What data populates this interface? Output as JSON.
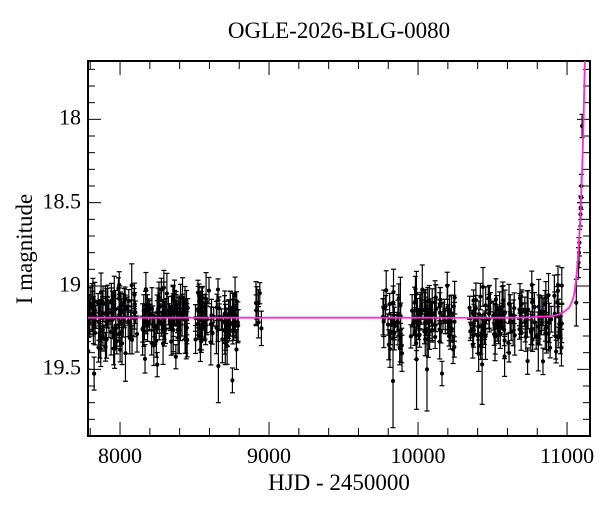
{
  "chart_data": {
    "type": "scatter",
    "title": "OGLE-2026-BLG-0080",
    "xlabel": "HJD - 2450000",
    "ylabel": "I magnitude",
    "xlim": [
      7785,
      11154
    ],
    "ylim": [
      17.65,
      19.9
    ],
    "y_axis_inverted": true,
    "grid": false,
    "legend": null,
    "x_major_ticks": [
      8000,
      9000,
      10000,
      11000
    ],
    "x_tick_labels": [
      "8000",
      "9000",
      "10000",
      "11000"
    ],
    "x_minor_step": 200,
    "y_major_ticks": [
      18,
      18.5,
      19,
      19.5
    ],
    "y_tick_labels": [
      "18",
      "18.5",
      "19",
      "19.5"
    ],
    "y_minor_step": 0.1,
    "point_color": "#000000",
    "error_bar_color": "#000000",
    "curve_color": "#ff2bd6",
    "baseline_mag": 19.19,
    "seed": 11,
    "point_stats": {
      "sigma": 0.082,
      "err_base": 0.055,
      "err_spread": 0.045,
      "tail_prob": 0.05,
      "tail_max": 0.2
    },
    "seasons": [
      {
        "hjd": [
          7785,
          8120
        ],
        "n": 95,
        "mean": 19.19
      },
      {
        "hjd": [
          8150,
          8455
        ],
        "n": 85,
        "mean": 19.19
      },
      {
        "hjd": [
          8505,
          8795
        ],
        "n": 72,
        "mean": 19.19
      },
      {
        "hjd": [
          8905,
          8950
        ],
        "n": 7,
        "mean": 19.17
      },
      {
        "hjd": [
          9760,
          9895
        ],
        "n": 30,
        "mean": 19.19
      },
      {
        "hjd": [
          9950,
          10260
        ],
        "n": 70,
        "mean": 19.19
      },
      {
        "hjd": [
          10340,
          10650
        ],
        "n": 70,
        "mean": 19.19
      },
      {
        "hjd": [
          10680,
          10965
        ],
        "n": 62,
        "mean": 19.19
      }
    ],
    "outlier_points": [
      [
        9832,
        19.57,
        0.28
      ],
      [
        10060,
        19.5,
        0.25
      ],
      [
        8660,
        19.48,
        0.22
      ],
      [
        10430,
        19.47,
        0.24
      ],
      [
        9990,
        19.44,
        0.3
      ]
    ],
    "rise_points": [
      [
        11062,
        19.1,
        0.14
      ],
      [
        11077,
        18.86,
        0.09
      ],
      [
        11080,
        18.8,
        0.09
      ],
      [
        11083,
        18.74,
        0.08
      ],
      [
        11090,
        18.57,
        0.07
      ],
      [
        11092,
        18.53,
        0.07
      ],
      [
        11094,
        18.47,
        0.07
      ],
      [
        11096,
        18.4,
        0.07
      ],
      [
        11101,
        18.04,
        0.07
      ]
    ],
    "model_curve": [
      [
        7785,
        19.19
      ],
      [
        9500,
        19.19
      ],
      [
        10600,
        19.19
      ],
      [
        10800,
        19.185
      ],
      [
        10900,
        19.18
      ],
      [
        10960,
        19.165
      ],
      [
        11000,
        19.14
      ],
      [
        11020,
        19.12
      ],
      [
        11047,
        19.05
      ],
      [
        11067,
        18.9
      ],
      [
        11081,
        18.72
      ],
      [
        11094,
        18.48
      ],
      [
        11107,
        18.13
      ],
      [
        11114,
        17.86
      ],
      [
        11121,
        17.6
      ]
    ]
  }
}
